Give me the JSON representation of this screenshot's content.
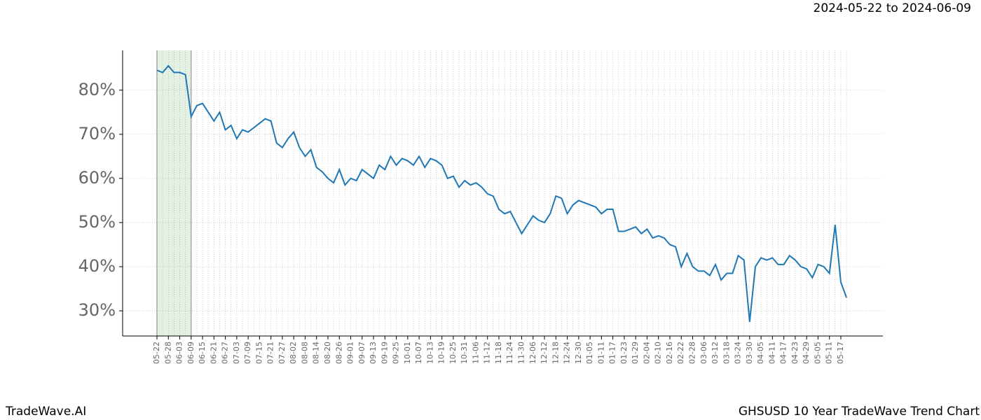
{
  "chart_data": {
    "type": "line",
    "subtitle": "2024-05-22 to 2024-06-09",
    "footer_left": "TradeWave.AI",
    "footer_right": "GHSUSD 10 Year TradeWave Trend Chart",
    "color": "#1f77b4",
    "highlight_range": [
      "05-22",
      "06-09"
    ],
    "highlight_color": "#e3f1e3",
    "grid": true,
    "ylim": [
      24.3,
      89
    ],
    "yticks": [
      {
        "value": 30,
        "label": "30%"
      },
      {
        "value": 40,
        "label": "40%"
      },
      {
        "value": 50,
        "label": "50%"
      },
      {
        "value": 60,
        "label": "60%"
      },
      {
        "value": 70,
        "label": "70%"
      },
      {
        "value": 80,
        "label": "80%"
      }
    ],
    "categories": [
      "05-22",
      null,
      "05-28",
      null,
      "06-03",
      null,
      "06-09",
      null,
      "06-15",
      null,
      "06-21",
      null,
      "06-27",
      null,
      "07-03",
      null,
      "07-09",
      null,
      "07-15",
      null,
      "07-21",
      null,
      "07-27",
      null,
      "08-02",
      null,
      "08-08",
      null,
      "08-14",
      null,
      "08-20",
      null,
      "08-26",
      null,
      "09-01",
      null,
      "09-07",
      null,
      "09-13",
      null,
      "09-19",
      null,
      "09-25",
      null,
      "10-01",
      null,
      "10-07",
      null,
      "10-13",
      null,
      "10-19",
      null,
      "10-25",
      null,
      "10-31",
      null,
      "11-06",
      null,
      "11-12",
      null,
      "11-18",
      null,
      "11-24",
      null,
      "11-30",
      null,
      "12-06",
      null,
      "12-12",
      null,
      "12-18",
      null,
      "12-24",
      null,
      "12-30",
      null,
      "01-05",
      null,
      "01-11",
      null,
      "01-17",
      null,
      "01-23",
      null,
      "01-29",
      null,
      "02-04",
      null,
      "02-10",
      null,
      "02-16",
      null,
      "02-22",
      null,
      "02-28",
      null,
      "03-06",
      null,
      "03-12",
      null,
      "03-18",
      null,
      "03-24",
      null,
      "03-30",
      null,
      "04-05",
      null,
      "04-11",
      null,
      "04-17",
      null,
      "04-23",
      null,
      "04-29",
      null,
      "05-05",
      null,
      "05-11",
      null,
      "05-17",
      null
    ],
    "values": [
      84.5,
      84,
      85.5,
      84,
      84,
      83.5,
      74,
      76.5,
      77,
      75,
      73,
      75,
      71,
      72,
      69,
      71,
      70.5,
      71.5,
      72.5,
      73.5,
      73,
      68,
      67,
      69,
      70.5,
      67,
      65,
      66.5,
      62.5,
      61.5,
      60,
      59,
      62,
      58.5,
      60,
      59.5,
      62,
      61,
      60,
      63,
      62,
      65,
      63,
      64.5,
      64,
      63,
      65,
      62.5,
      64.5,
      64,
      63,
      60,
      60.5,
      58,
      59.5,
      58.5,
      59,
      58,
      56.5,
      56,
      53,
      52,
      52.5,
      50,
      47.5,
      49.5,
      51.5,
      50.5,
      50,
      52,
      56,
      55.5,
      52,
      54,
      55,
      54.5,
      54,
      53.5,
      52,
      53,
      53,
      48,
      48,
      48.5,
      49,
      47.5,
      48.5,
      46.5,
      47,
      46.5,
      45,
      44.5,
      40,
      43,
      40,
      39,
      39,
      38,
      40.5,
      37,
      38.5,
      38.5,
      42.5,
      41.5,
      27.5,
      40,
      42,
      41.5,
      42,
      40.5,
      40.5,
      42.5,
      41.5,
      40,
      39.5,
      37.5,
      40.5,
      40,
      38.5,
      49.5,
      36.5,
      33
    ]
  }
}
